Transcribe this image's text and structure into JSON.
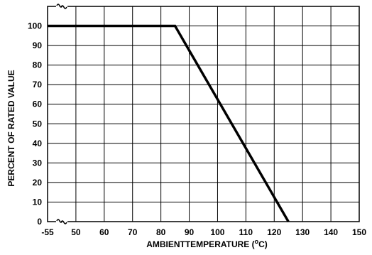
{
  "chart_data": {
    "type": "line",
    "xlabel": "AMBIENTTEMPERATURE (",
    "xlabel_unit_sup": "o",
    "xlabel_unit_end": "C)",
    "ylabel": "PERCENT OF RATED VALUE",
    "x_ticks": [
      "-55",
      "50",
      "60",
      "70",
      "80",
      "90",
      "100",
      "110",
      "120",
      "130",
      "140",
      "150"
    ],
    "y_ticks": [
      "0",
      "10",
      "20",
      "30",
      "40",
      "50",
      "60",
      "70",
      "80",
      "90",
      "100"
    ],
    "xlim": [
      40,
      150
    ],
    "ylim": [
      0,
      110
    ],
    "axis_break": "x-axis between -55 and 50",
    "grid": true,
    "series": [
      {
        "x": [
          40,
          85,
          125
        ],
        "y": [
          100,
          100,
          0
        ]
      }
    ]
  }
}
